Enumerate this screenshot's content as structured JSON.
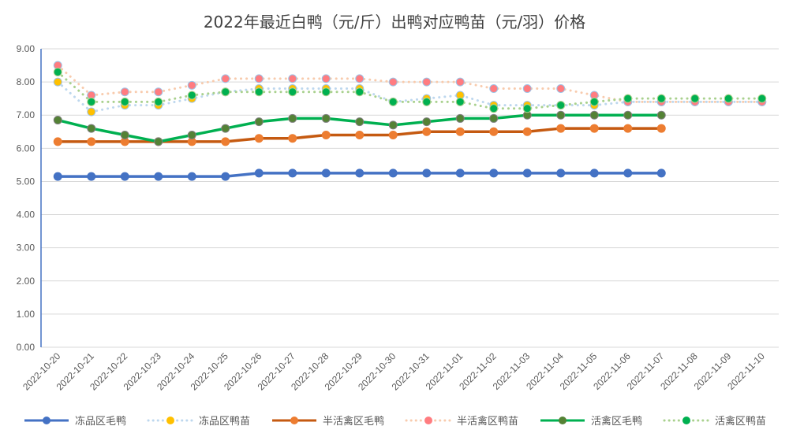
{
  "chart_data": {
    "type": "line",
    "title": "2022年最近白鸭（元/斤）出鸭对应鸭苗（元/羽）价格",
    "xlabel": "",
    "ylabel": "",
    "ylim": [
      0,
      9
    ],
    "yticks": [
      "0.00",
      "1.00",
      "2.00",
      "3.00",
      "4.00",
      "5.00",
      "6.00",
      "7.00",
      "8.00",
      "9.00"
    ],
    "grid": true,
    "legend": "bottom",
    "categories": [
      "2022-10-20",
      "2022-10-21",
      "2022-10-22",
      "2022-10-23",
      "2022-10-24",
      "2022-10-25",
      "2022-10-26",
      "2022-10-27",
      "2022-10-28",
      "2022-10-29",
      "2022-10-30",
      "2022-10-31",
      "2022-11-01",
      "2022-11-02",
      "2022-11-03",
      "2022-11-04",
      "2022-11-05",
      "2022-11-06",
      "2022-11-07",
      "2022-11-08",
      "2022-11-09",
      "2022-11-10"
    ],
    "series": [
      {
        "name": "冻品区毛鸭",
        "style": "solid",
        "color": "#4472c4",
        "marker": "#4472c4",
        "values": [
          5.15,
          5.15,
          5.15,
          5.15,
          5.15,
          5.15,
          5.25,
          5.25,
          5.25,
          5.25,
          5.25,
          5.25,
          5.25,
          5.25,
          5.25,
          5.25,
          5.25,
          5.25,
          5.25,
          null,
          null,
          null
        ]
      },
      {
        "name": "冻品区鸭苗",
        "style": "dotted",
        "color": "#bdd7ee",
        "marker": "#ffc000",
        "values": [
          8.0,
          7.1,
          7.3,
          7.3,
          7.5,
          7.7,
          7.8,
          7.8,
          7.8,
          7.8,
          7.4,
          7.5,
          7.6,
          7.3,
          7.3,
          7.3,
          7.3,
          7.4,
          7.4,
          7.4,
          7.4,
          7.4
        ]
      },
      {
        "name": "半活禽区毛鸭",
        "style": "solid",
        "color": "#c55a11",
        "marker": "#ed7d31",
        "values": [
          6.2,
          6.2,
          6.2,
          6.2,
          6.2,
          6.2,
          6.3,
          6.3,
          6.4,
          6.4,
          6.4,
          6.5,
          6.5,
          6.5,
          6.5,
          6.6,
          6.6,
          6.6,
          6.6,
          null,
          null,
          null
        ]
      },
      {
        "name": "半活禽区鸭苗",
        "style": "dotted",
        "color": "#f8cbad",
        "marker": "#ff7c80",
        "values": [
          8.5,
          7.6,
          7.7,
          7.7,
          7.9,
          8.1,
          8.1,
          8.1,
          8.1,
          8.1,
          8.0,
          8.0,
          8.0,
          7.8,
          7.8,
          7.8,
          7.6,
          7.4,
          7.4,
          7.4,
          7.4,
          7.4
        ]
      },
      {
        "name": "活禽区毛鸭",
        "style": "solid",
        "color": "#00b050",
        "marker": "#548235",
        "values": [
          6.85,
          6.6,
          6.4,
          6.2,
          6.4,
          6.6,
          6.8,
          6.9,
          6.9,
          6.8,
          6.7,
          6.8,
          6.9,
          6.9,
          7.0,
          7.0,
          7.0,
          7.0,
          7.0,
          null,
          null,
          null
        ]
      },
      {
        "name": "活禽区鸭苗",
        "style": "dotted",
        "color": "#a9d18e",
        "marker": "#00b050",
        "values": [
          8.3,
          7.4,
          7.4,
          7.4,
          7.6,
          7.7,
          7.7,
          7.7,
          7.7,
          7.7,
          7.4,
          7.4,
          7.4,
          7.2,
          7.2,
          7.3,
          7.4,
          7.5,
          7.5,
          7.5,
          7.5,
          7.5
        ]
      }
    ]
  }
}
